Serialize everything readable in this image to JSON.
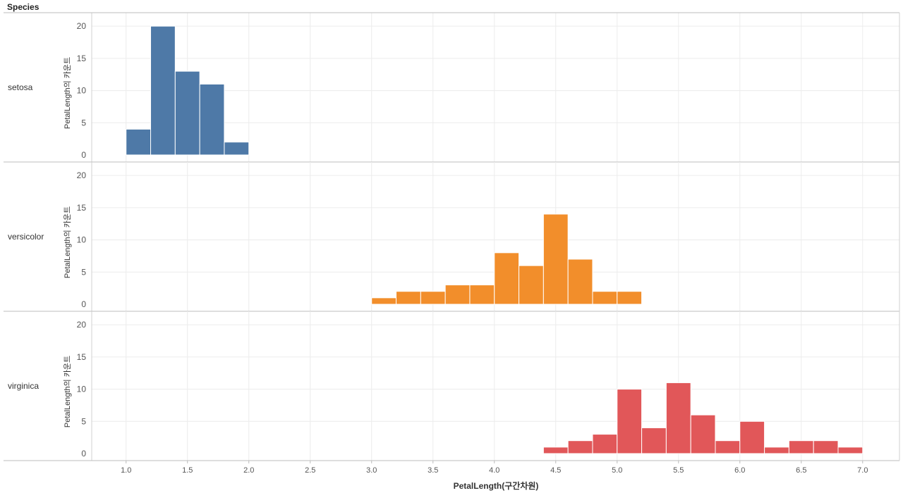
{
  "header": {
    "facet_title": "Species"
  },
  "chart_data": {
    "type": "bar",
    "subtype": "histogram-faceted",
    "xlabel": "PetalLength(구간차원)",
    "ylabel": "PetalLength의 카운트",
    "x_ticks": [
      "1.0",
      "1.5",
      "2.0",
      "2.5",
      "3.0",
      "3.5",
      "4.0",
      "4.5",
      "5.0",
      "5.5",
      "6.0",
      "6.5",
      "7.0"
    ],
    "x_tick_values": [
      1.0,
      1.5,
      2.0,
      2.5,
      3.0,
      3.5,
      4.0,
      4.5,
      5.0,
      5.5,
      6.0,
      6.5,
      7.0
    ],
    "xlim": [
      0.72,
      7.3
    ],
    "ylim": [
      0,
      21
    ],
    "y_ticks": [
      0,
      5,
      10,
      15,
      20
    ],
    "bin_width": 0.2,
    "grid": true,
    "facets": [
      {
        "name": "setosa",
        "color": "#4e79a7",
        "bins": [
          {
            "start": 1.0,
            "count": 4
          },
          {
            "start": 1.2,
            "count": 20
          },
          {
            "start": 1.4,
            "count": 13
          },
          {
            "start": 1.6,
            "count": 11
          },
          {
            "start": 1.8,
            "count": 2
          }
        ]
      },
      {
        "name": "versicolor",
        "color": "#f28e2b",
        "bins": [
          {
            "start": 3.0,
            "count": 1
          },
          {
            "start": 3.2,
            "count": 2
          },
          {
            "start": 3.4,
            "count": 2
          },
          {
            "start": 3.6,
            "count": 3
          },
          {
            "start": 3.8,
            "count": 3
          },
          {
            "start": 4.0,
            "count": 8
          },
          {
            "start": 4.2,
            "count": 6
          },
          {
            "start": 4.4,
            "count": 14
          },
          {
            "start": 4.6,
            "count": 7
          },
          {
            "start": 4.8,
            "count": 2
          },
          {
            "start": 5.0,
            "count": 2
          }
        ]
      },
      {
        "name": "virginica",
        "color": "#e15759",
        "bins": [
          {
            "start": 4.4,
            "count": 1
          },
          {
            "start": 4.6,
            "count": 2
          },
          {
            "start": 4.8,
            "count": 3
          },
          {
            "start": 5.0,
            "count": 10
          },
          {
            "start": 5.2,
            "count": 4
          },
          {
            "start": 5.4,
            "count": 11
          },
          {
            "start": 5.6,
            "count": 6
          },
          {
            "start": 5.8,
            "count": 2
          },
          {
            "start": 6.0,
            "count": 5
          },
          {
            "start": 6.2,
            "count": 1
          },
          {
            "start": 6.4,
            "count": 2
          },
          {
            "start": 6.6,
            "count": 2
          },
          {
            "start": 6.8,
            "count": 1
          }
        ]
      }
    ]
  }
}
